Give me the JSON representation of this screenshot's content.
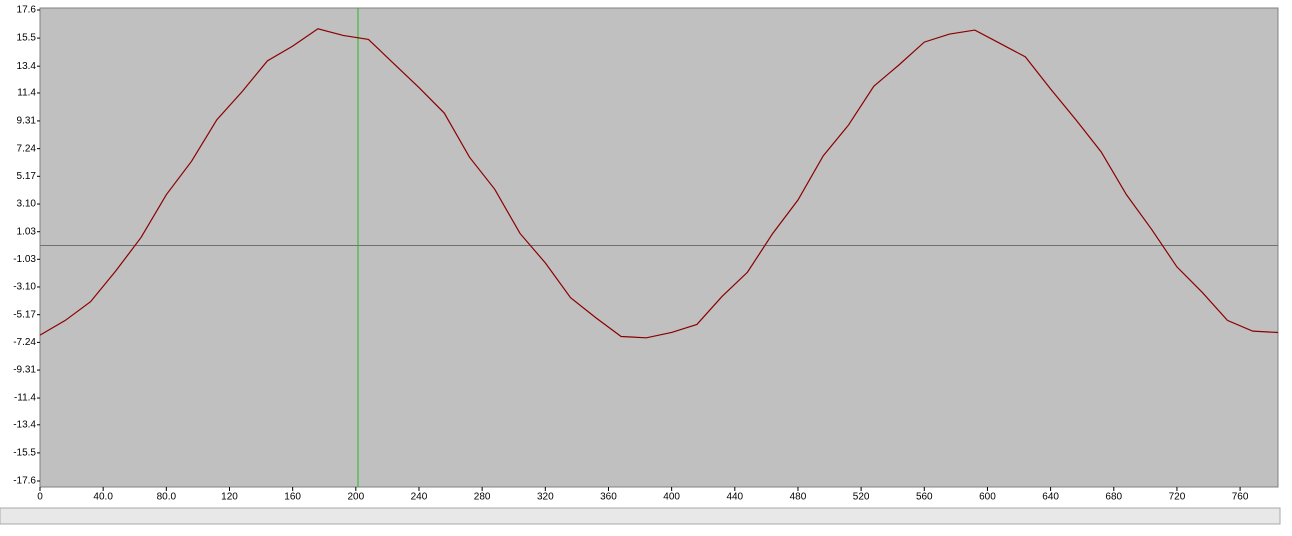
{
  "chart_data": {
    "type": "line",
    "x": [
      0,
      16,
      32,
      48,
      64,
      80,
      96,
      112,
      128,
      144,
      160,
      176,
      192,
      208,
      224,
      240,
      256,
      272,
      288,
      304,
      320,
      336,
      352,
      368,
      384,
      400,
      416,
      432,
      448,
      464,
      480,
      496,
      512,
      528,
      544,
      560,
      576,
      592,
      608,
      624,
      640,
      656,
      672,
      688,
      704,
      720,
      736,
      752,
      768,
      784
    ],
    "series": [
      {
        "color": "#8b0000",
        "values": [
          -6.7,
          -5.6,
          -4.2,
          -1.9,
          0.6,
          3.8,
          6.3,
          9.4,
          11.5,
          13.8,
          14.9,
          16.2,
          15.7,
          15.4,
          13.6,
          11.8,
          9.9,
          6.6,
          4.2,
          0.9,
          -1.3,
          -3.9,
          -5.4,
          -6.8,
          -6.9,
          -6.5,
          -5.9,
          -3.8,
          -2.0,
          0.9,
          3.4,
          6.7,
          9.0,
          11.9,
          13.5,
          15.2,
          15.8,
          16.1,
          15.1,
          14.1,
          11.7,
          9.4,
          7.0,
          3.8,
          1.2,
          -1.6,
          -3.5,
          -5.6,
          -6.4,
          -6.5
        ]
      }
    ],
    "xlim": [
      0,
      784
    ],
    "xticks": [
      0,
      {
        "value": 40,
        "label": "40.0"
      },
      {
        "value": 80,
        "label": "80.0"
      },
      120,
      160,
      200,
      240,
      280,
      320,
      360,
      400,
      440,
      480,
      520,
      560,
      600,
      640,
      680,
      720,
      760
    ],
    "ylim": [
      -17.6,
      17.6
    ],
    "yticks": [
      17.6,
      15.5,
      13.4,
      11.4,
      9.31,
      7.24,
      5.17,
      {
        "value": 3.1,
        "label": "3.10"
      },
      1.03,
      -1.03,
      {
        "value": -3.1,
        "label": "-3.10"
      },
      -5.17,
      -7.24,
      -9.31,
      -11.4,
      -13.4,
      -15.5,
      -17.6
    ]
  }
}
